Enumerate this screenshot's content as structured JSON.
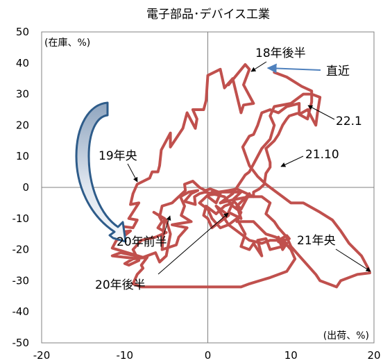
{
  "chart_data": {
    "type": "line",
    "title": "電子部品･デバイス工業",
    "xlabel": "(出荷、%)",
    "ylabel": "(在庫、%)",
    "xlim": [
      -20,
      20
    ],
    "ylim": [
      -50,
      50
    ],
    "x_ticks": [
      -20,
      -10,
      0,
      10,
      20
    ],
    "y_ticks": [
      50,
      40,
      30,
      20,
      10,
      0,
      -10,
      -20,
      -30,
      -40,
      -50
    ],
    "grid": false,
    "colors": {
      "series": "#c0504d",
      "arrow": "#2e5c8a",
      "highlight": "#4f81bd",
      "axis": "#808080"
    },
    "series": [
      {
        "color": "#c0504d",
        "points": [
          [
            2.5,
            33
          ],
          [
            4.5,
            39.5
          ],
          [
            5,
            38
          ],
          [
            4.3,
            33
          ],
          [
            5.5,
            27
          ],
          [
            4.3,
            26.5
          ],
          [
            4,
            24
          ],
          [
            3,
            35
          ],
          [
            2,
            32
          ],
          [
            1.5,
            38
          ],
          [
            0,
            36
          ],
          [
            -0.2,
            28
          ],
          [
            -0.5,
            25
          ],
          [
            -1.8,
            25
          ],
          [
            -1.3,
            22
          ],
          [
            -1.5,
            19
          ],
          [
            -2.5,
            24
          ],
          [
            -3,
            19
          ],
          [
            -4.5,
            13
          ],
          [
            -4.5,
            17.5
          ],
          [
            -5.6,
            12
          ],
          [
            -5.8,
            7
          ],
          [
            -6,
            5
          ],
          [
            -6.7,
            5
          ],
          [
            -7,
            3
          ],
          [
            -8.5,
            1
          ],
          [
            -9,
            -2
          ],
          [
            -9.3,
            -5.5
          ],
          [
            -8.3,
            -5
          ],
          [
            -9.5,
            -10
          ],
          [
            -8.5,
            -10.5
          ],
          [
            -9,
            -13
          ],
          [
            -10.5,
            -12.5
          ],
          [
            -11,
            -14.5
          ],
          [
            -9.3,
            -14
          ],
          [
            -10.5,
            -16.5
          ],
          [
            -11,
            -17
          ],
          [
            -11.5,
            -19.5
          ],
          [
            -7.8,
            -22.5
          ],
          [
            -10.5,
            -21
          ],
          [
            -11.5,
            -22
          ],
          [
            -8.3,
            -23
          ],
          [
            -6.3,
            -21
          ],
          [
            -5.8,
            -24
          ],
          [
            -5,
            -22
          ],
          [
            -4.5,
            -15
          ],
          [
            -5,
            -10.5
          ],
          [
            -6.5,
            -8
          ],
          [
            -5.2,
            -10
          ],
          [
            -5.5,
            -20
          ],
          [
            -3.8,
            -18.5
          ],
          [
            -3.5,
            -16
          ],
          [
            -2.5,
            -13
          ],
          [
            -4.3,
            -12
          ],
          [
            -2,
            -11
          ],
          [
            -3.2,
            -9
          ],
          [
            -2.8,
            -6
          ],
          [
            -3.3,
            -3
          ],
          [
            -2.3,
            -1.5
          ],
          [
            -1.2,
            -1
          ],
          [
            -2,
            -2
          ],
          [
            -2.8,
            -4.5
          ],
          [
            -1.5,
            -5.5
          ],
          [
            -1.6,
            -3
          ],
          [
            -1,
            -2
          ],
          [
            -0.3,
            -1.5
          ],
          [
            2,
            -3
          ],
          [
            3,
            -6
          ],
          [
            4,
            -8
          ],
          [
            3.5,
            -11
          ],
          [
            5.5,
            -11
          ],
          [
            7,
            -15
          ],
          [
            8.2,
            -16
          ],
          [
            9.5,
            -18
          ],
          [
            9,
            -20
          ],
          [
            8.5,
            -16
          ],
          [
            9,
            -19
          ],
          [
            7.5,
            -20
          ],
          [
            7,
            -16.5
          ],
          [
            6,
            -17
          ],
          [
            6.5,
            -22
          ],
          [
            5.5,
            -18
          ],
          [
            5,
            -20
          ],
          [
            4,
            -19
          ],
          [
            4.5,
            -15
          ],
          [
            3.5,
            -10
          ],
          [
            2.5,
            -12
          ],
          [
            2,
            -10
          ],
          [
            1,
            -6
          ],
          [
            2.5,
            -9
          ],
          [
            1.5,
            -11
          ],
          [
            0.5,
            -13
          ],
          [
            0,
            -10
          ],
          [
            -0.5,
            -9
          ],
          [
            -0.2,
            -6
          ],
          [
            1,
            -8.5
          ],
          [
            2,
            -6
          ],
          [
            3,
            -5
          ],
          [
            2.5,
            -8
          ],
          [
            4,
            -10
          ],
          [
            3.5,
            -6
          ],
          [
            5,
            -2
          ],
          [
            4,
            -7
          ],
          [
            3,
            -4
          ],
          [
            4,
            -1.5
          ],
          [
            0.5,
            -1.5
          ],
          [
            0,
            -3
          ],
          [
            1,
            -5
          ],
          [
            1.5,
            -2
          ],
          [
            0,
            -2.5
          ],
          [
            -1,
            -5
          ],
          [
            0,
            -7
          ],
          [
            0.5,
            -10
          ],
          [
            1.5,
            -13
          ],
          [
            2.5,
            -12
          ],
          [
            3.5,
            -14
          ],
          [
            5,
            -17
          ],
          [
            6.5,
            -18
          ],
          [
            7.5,
            -17
          ],
          [
            8.5,
            -17
          ],
          [
            9.5,
            -15.5
          ],
          [
            9.8,
            -16.5
          ],
          [
            8.5,
            -17.5
          ],
          [
            9.5,
            -18.5
          ],
          [
            10,
            -20
          ],
          [
            10.5,
            -23
          ],
          [
            9.5,
            -27
          ],
          [
            7.5,
            -29
          ],
          [
            5,
            -31
          ],
          [
            4,
            -32
          ],
          [
            -2.5,
            -32
          ],
          [
            -4.5,
            -32
          ],
          [
            -8,
            -32
          ],
          [
            -9,
            -31
          ],
          [
            -8.5,
            -28
          ],
          [
            -7.8,
            -26
          ],
          [
            -8,
            -25
          ],
          [
            -7.3,
            -22.5
          ],
          [
            -9,
            -23
          ],
          [
            -10,
            -24.5
          ],
          [
            -9.5,
            -25
          ],
          [
            -8.3,
            -23.5
          ],
          [
            -9,
            -20
          ],
          [
            -8,
            -17
          ],
          [
            -6.3,
            -16
          ],
          [
            -5,
            -14.5
          ],
          [
            -6,
            -13
          ],
          [
            -5.5,
            -11
          ],
          [
            -5.8,
            -9.5
          ],
          [
            -5.5,
            -6
          ],
          [
            -4.3,
            -5
          ],
          [
            -3.5,
            -3
          ],
          [
            -2.7,
            -1
          ],
          [
            -2.8,
            1
          ],
          [
            -1.8,
            2
          ],
          [
            -1,
            0
          ],
          [
            -0.3,
            -1
          ],
          [
            0.3,
            -0.5
          ],
          [
            1.3,
            -1.5
          ],
          [
            2.5,
            -1
          ],
          [
            3.5,
            -0.5
          ],
          [
            4.3,
            -1.5
          ],
          [
            5.5,
            -3
          ],
          [
            5.5,
            -1.5
          ],
          [
            6.2,
            -0.5
          ],
          [
            6.8,
            1
          ],
          [
            7,
            4.5
          ],
          [
            7.5,
            6.5
          ],
          [
            7.5,
            8
          ],
          [
            7,
            12.5
          ],
          [
            8,
            15
          ],
          [
            8.5,
            17
          ],
          [
            9,
            20
          ],
          [
            9.5,
            22
          ],
          [
            9.8,
            23
          ],
          [
            11,
            24
          ],
          [
            11,
            27
          ],
          [
            9.5,
            26
          ],
          [
            8.5,
            24
          ],
          [
            7.5,
            25
          ],
          [
            6.5,
            24
          ],
          [
            6,
            20
          ],
          [
            5.5,
            17
          ],
          [
            5,
            16.5
          ],
          [
            4.2,
            13
          ],
          [
            5,
            7
          ],
          [
            6,
            3.5
          ],
          [
            7,
            1
          ],
          [
            8,
            -1
          ],
          [
            9,
            -3
          ],
          [
            10,
            -5
          ],
          [
            11.5,
            -5
          ],
          [
            13.5,
            -8
          ],
          [
            15,
            -10.5
          ],
          [
            16,
            -14
          ],
          [
            17,
            -18
          ],
          [
            18.5,
            -22
          ],
          [
            19.3,
            -26
          ],
          [
            19.5,
            -27.5
          ],
          [
            18,
            -28
          ],
          [
            16,
            -30
          ],
          [
            15.5,
            -32
          ],
          [
            13.5,
            -30
          ],
          [
            13,
            -28
          ],
          [
            11,
            -22
          ],
          [
            10,
            -19
          ],
          [
            9.5,
            -16
          ],
          [
            8.5,
            -13
          ],
          [
            8,
            -11
          ],
          [
            7,
            -8.5
          ],
          [
            7.5,
            -5
          ],
          [
            6.5,
            -3
          ],
          [
            5,
            -3
          ],
          [
            3,
            -4
          ],
          [
            1.5,
            -5
          ],
          [
            3,
            -2
          ],
          [
            4.5,
            4
          ],
          [
            5,
            5
          ],
          [
            6.5,
            12.5
          ],
          [
            7.5,
            15.5
          ],
          [
            8,
            20
          ],
          [
            7.5,
            23
          ],
          [
            8,
            26
          ],
          [
            10,
            27
          ],
          [
            11.5,
            30
          ],
          [
            12.5,
            30
          ],
          [
            13.5,
            29
          ],
          [
            13.2,
            24
          ],
          [
            13,
            20
          ],
          [
            12,
            25
          ],
          [
            11,
            23.5
          ],
          [
            12,
            22
          ],
          [
            12.5,
            27.5
          ],
          [
            12.5,
            31
          ],
          [
            11.3,
            32.5
          ],
          [
            11,
            33
          ],
          [
            9.5,
            35.5
          ],
          [
            8,
            37
          ]
        ]
      }
    ],
    "annotations": [
      {
        "label": "18年後半",
        "point": [
          4.8,
          38.5
        ]
      },
      {
        "label": "19年央",
        "point": [
          -7.8,
          1.5
        ]
      },
      {
        "label": "20年前半",
        "point": [
          -4.5,
          -8
        ]
      },
      {
        "label": "20年後半",
        "point": [
          2.6,
          -7.6
        ]
      },
      {
        "label": "21年央",
        "point": [
          19.2,
          -27.5
        ]
      },
      {
        "label": "21.10",
        "point": [
          8.1,
          6.8
        ]
      },
      {
        "label": "22.1",
        "point": [
          11.8,
          25
        ]
      },
      {
        "label": "直近",
        "point": [
          7.8,
          37.8
        ]
      }
    ]
  }
}
